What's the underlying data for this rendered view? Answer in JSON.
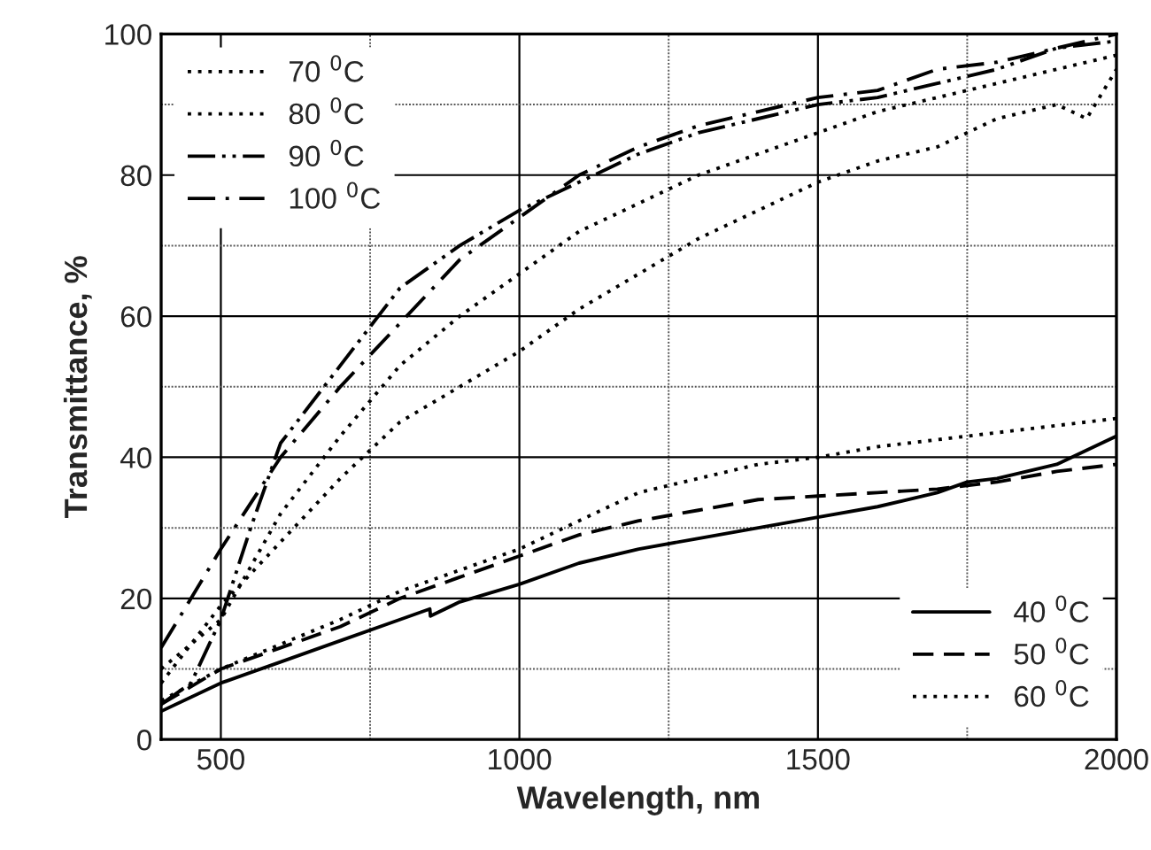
{
  "chart_data": {
    "type": "line",
    "xlabel": "Wavelength, nm",
    "ylabel": "Transmittance, %",
    "xlim": [
      400,
      2000
    ],
    "xticks": [
      500,
      1000,
      1500,
      2000
    ],
    "ylim": [
      0,
      100
    ],
    "yticks": [
      0,
      20,
      40,
      60,
      80,
      100
    ],
    "grid": true,
    "marker": "none",
    "legend": [
      "bottom right",
      "bottom right",
      "bottom right",
      "top left",
      "top left",
      "top left",
      "top left"
    ],
    "series": [
      {
        "name": "40 $^{0}$C",
        "color": "#000000",
        "line_style": "solid",
        "x": [
          400,
          500,
          600,
          700,
          800,
          850,
          851,
          900,
          1000,
          1100,
          1200,
          1300,
          1400,
          1500,
          1600,
          1700,
          1750,
          1800,
          1900,
          2000
        ],
        "values": [
          4,
          8,
          11,
          14,
          17,
          18.5,
          17.5,
          19.5,
          22,
          25,
          27,
          28.5,
          30,
          31.5,
          33,
          35,
          36.5,
          37,
          39,
          43
        ]
      },
      {
        "name": "50 $^{0}$C",
        "color": "#000000",
        "line_style": "dashed",
        "x": [
          400,
          500,
          600,
          700,
          800,
          900,
          1000,
          1100,
          1200,
          1300,
          1400,
          1500,
          1600,
          1700,
          1800,
          1900,
          2000
        ],
        "values": [
          5,
          10,
          13,
          16,
          20,
          23,
          26,
          29,
          31,
          32.5,
          34,
          34.5,
          35,
          35.5,
          36.5,
          38,
          39
        ]
      },
      {
        "name": "60 $^{0}$C",
        "color": "#000000",
        "line_style": "dotted",
        "x": [
          400,
          500,
          600,
          700,
          800,
          900,
          1000,
          1100,
          1200,
          1300,
          1400,
          1500,
          1600,
          1700,
          1800,
          1900,
          2000
        ],
        "values": [
          5.5,
          10,
          13.5,
          17,
          21,
          24,
          27,
          31,
          35,
          37,
          39,
          40,
          41.5,
          42.5,
          43.5,
          44.5,
          45.5
        ]
      },
      {
        "name": "70 $^{0}$C",
        "color": "#000000",
        "line_style": "dotted",
        "x": [
          400,
          500,
          600,
          700,
          800,
          900,
          1000,
          1100,
          1200,
          1300,
          1400,
          1500,
          1600,
          1700,
          1800,
          1900,
          1950,
          2000
        ],
        "values": [
          8,
          19,
          28,
          37,
          45,
          50,
          55,
          61,
          66,
          71,
          75,
          79,
          82,
          84,
          88,
          90,
          88,
          95
        ]
      },
      {
        "name": "80 $^{0}$C",
        "color": "#000000",
        "line_style": "dotted",
        "x": [
          400,
          500,
          600,
          700,
          800,
          900,
          1000,
          1100,
          1200,
          1300,
          1400,
          1500,
          1600,
          1700,
          1800,
          1900,
          2000
        ],
        "values": [
          10,
          17,
          32,
          43,
          53,
          60,
          66,
          72,
          76,
          80,
          83,
          86,
          89,
          91,
          93,
          95,
          97
        ]
      },
      {
        "name": "90 $^{0}$C",
        "color": "#000000",
        "line_style": "dashdotdot",
        "x": [
          400,
          450,
          500,
          550,
          600,
          700,
          800,
          900,
          1000,
          1100,
          1200,
          1300,
          1400,
          1500,
          1600,
          1700,
          1800,
          1900,
          2000
        ],
        "values": [
          5,
          8,
          17,
          30,
          42,
          53,
          64,
          70,
          75,
          79,
          83,
          86,
          88,
          90,
          91,
          93,
          95,
          98,
          99
        ]
      },
      {
        "name": "100 $^{0}$C",
        "color": "#000000",
        "line_style": "dashdot",
        "x": [
          400,
          500,
          600,
          700,
          800,
          900,
          1000,
          1100,
          1200,
          1300,
          1400,
          1500,
          1600,
          1700,
          1800,
          1900,
          2000
        ],
        "values": [
          13,
          27,
          40,
          50,
          59,
          68,
          74,
          80,
          84,
          87,
          89,
          91,
          92,
          95,
          96,
          98,
          100
        ]
      }
    ]
  }
}
